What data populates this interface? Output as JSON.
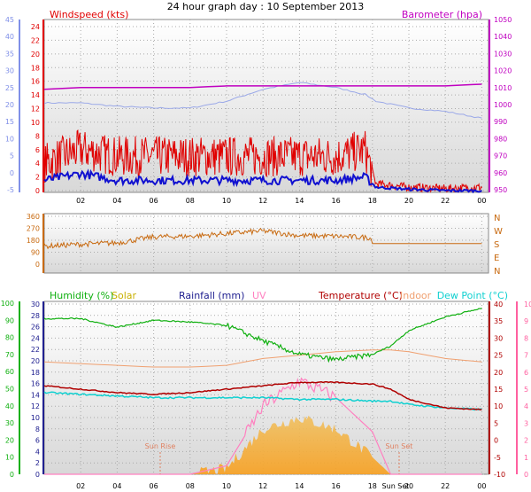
{
  "title": "24 hour graph day : 10 September 2013",
  "colors": {
    "wind": "#e00000",
    "gust": "#1010d0",
    "gust_axis": "#8090e8",
    "baro": "#c000c0",
    "baro_trace": "#9aa8e8",
    "winddir": "#c86a10",
    "humidity": "#10b010",
    "solar": "#c8b000",
    "rain": "#202090",
    "uv": "#ff80c0",
    "temp": "#b00000",
    "indoor": "#f0a070",
    "dew": "#10d0d0",
    "solar_fill": "#f4b840",
    "axis_right": "#ff60a0"
  },
  "chart_data": [
    {
      "id": "wind",
      "type": "line",
      "title": "24 hour graph day : 10 September 2013",
      "left_axis": {
        "label": "Windspeed (kts)",
        "ticks": [
          0,
          2,
          4,
          6,
          8,
          10,
          12,
          14,
          16,
          18,
          20,
          22,
          24
        ]
      },
      "left_axis_outer": {
        "ticks": [
          -5,
          0,
          5,
          10,
          15,
          20,
          25,
          30,
          35,
          40,
          45
        ]
      },
      "right_axis": {
        "label": "Barometer (hpa)",
        "ticks": [
          950,
          960,
          970,
          980,
          990,
          1000,
          1010,
          1020,
          1030,
          1040,
          1050
        ]
      },
      "x_ticks": [
        "02",
        "04",
        "06",
        "08",
        "10",
        "12",
        "14",
        "16",
        "18",
        "20",
        "22",
        "00"
      ],
      "x": [
        0,
        2,
        4,
        6,
        8,
        10,
        12,
        14,
        16,
        17.6,
        18.2,
        20,
        22,
        24
      ],
      "series": [
        {
          "name": "Windspeed (kts)",
          "values": [
            4,
            6,
            5,
            5,
            5,
            5,
            5,
            5,
            5,
            6,
            1,
            0.5,
            0.3,
            0.5
          ]
        },
        {
          "name": "Gust",
          "values": [
            1.5,
            2.5,
            1.5,
            1.5,
            1.5,
            1.5,
            1.5,
            1.5,
            1.5,
            2,
            0.5,
            0.2,
            0,
            0
          ]
        },
        {
          "name": "Barometer (hpa)",
          "values": [
            1009,
            1010,
            1010,
            1010,
            1010,
            1011,
            1011,
            1011,
            1011,
            1011,
            1011,
            1011,
            1011,
            1012
          ]
        },
        {
          "name": "Barometer trace",
          "values": [
            1001,
            1001,
            999,
            998,
            998,
            1002,
            1009,
            1013,
            1010,
            1006,
            1002,
            998,
            996,
            992
          ]
        }
      ],
      "grid": true
    },
    {
      "id": "direction",
      "type": "line",
      "left_axis": {
        "ticks": [
          0,
          90,
          180,
          270,
          360
        ]
      },
      "right_axis": {
        "ticks": [
          "N",
          "W",
          "S",
          "E",
          "N"
        ]
      },
      "x": [
        0,
        2,
        4,
        6,
        8,
        10,
        12,
        14,
        16,
        17.9,
        18,
        24
      ],
      "series": [
        {
          "name": "Wind direction",
          "values": [
            135,
            150,
            160,
            205,
            210,
            230,
            250,
            215,
            210,
            200,
            155,
            155
          ]
        }
      ],
      "grid": true
    },
    {
      "id": "thermo",
      "type": "area",
      "legend": [
        "Humidity (%)",
        "Solar",
        "Rainfall (mm)",
        "UV",
        "Temperature (°C)",
        "Indoor",
        "Dew Point (°C)"
      ],
      "left_axis_humidity": {
        "ticks": [
          0,
          10,
          20,
          30,
          40,
          50,
          60,
          70,
          80,
          90,
          100
        ]
      },
      "left_axis_rain": {
        "ticks": [
          0,
          2,
          4,
          6,
          8,
          10,
          12,
          14,
          16,
          18,
          20,
          22,
          24,
          26,
          28,
          30
        ]
      },
      "right_axis_temp": {
        "ticks": [
          -10,
          -5,
          0,
          5,
          10,
          15,
          20,
          25,
          30,
          35,
          40
        ]
      },
      "right_axis_uv": {
        "ticks": [
          0,
          1,
          2,
          3,
          4,
          5,
          6,
          7,
          8,
          9,
          10
        ]
      },
      "x_ticks": [
        "02",
        "04",
        "06",
        "08",
        "10",
        "12",
        "14",
        "16",
        "18",
        "00"
      ],
      "x": [
        0,
        2,
        4,
        6,
        8,
        10,
        12,
        14,
        16,
        18,
        19,
        20,
        22,
        24
      ],
      "series": [
        {
          "name": "Humidity (%)",
          "values": [
            91,
            91,
            86,
            90,
            89,
            87,
            78,
            70,
            67,
            70,
            75,
            84,
            92,
            97
          ]
        },
        {
          "name": "Temperature (°C)",
          "values": [
            16,
            15,
            14,
            13.5,
            14,
            15,
            16,
            17,
            17,
            16.5,
            15,
            12,
            9.5,
            9
          ]
        },
        {
          "name": "Dew Point (°C)",
          "values": [
            14,
            13.5,
            13,
            12.5,
            12.5,
            12.5,
            12.5,
            12,
            12,
            11.5,
            11.5,
            10.5,
            9.5,
            9
          ]
        },
        {
          "name": "Indoor",
          "values": [
            23,
            22.5,
            22,
            21.5,
            21.5,
            22,
            24,
            25,
            26,
            26.5,
            26.5,
            26,
            24,
            23
          ]
        },
        {
          "name": "UV",
          "values": [
            0,
            0,
            0,
            0,
            0,
            0.5,
            4,
            5.5,
            4.5,
            2.5,
            0,
            0,
            0,
            0
          ]
        },
        {
          "name": "Solar",
          "values": [
            0,
            0,
            0,
            0,
            0,
            1,
            8,
            10,
            8,
            3,
            0,
            0,
            0,
            0
          ]
        }
      ],
      "annotations": [
        "Sun Rise",
        "Sun Set",
        "Sun Set"
      ],
      "grid": true
    }
  ],
  "axis_text": {
    "wind_left": "Windspeed (kts)",
    "baro_right": "Barometer (hpa)",
    "humidity": "Humidity (%)",
    "solar": "Solar",
    "rain": "Rainfall (mm)",
    "uv": "UV",
    "temp": "Temperature (°C)",
    "indoor": "Indoor",
    "dew": "Dew Point (°C)",
    "sunrise": "Sun Rise",
    "sunset": "Sun Set",
    "sunset_tick": "Sun Set"
  }
}
